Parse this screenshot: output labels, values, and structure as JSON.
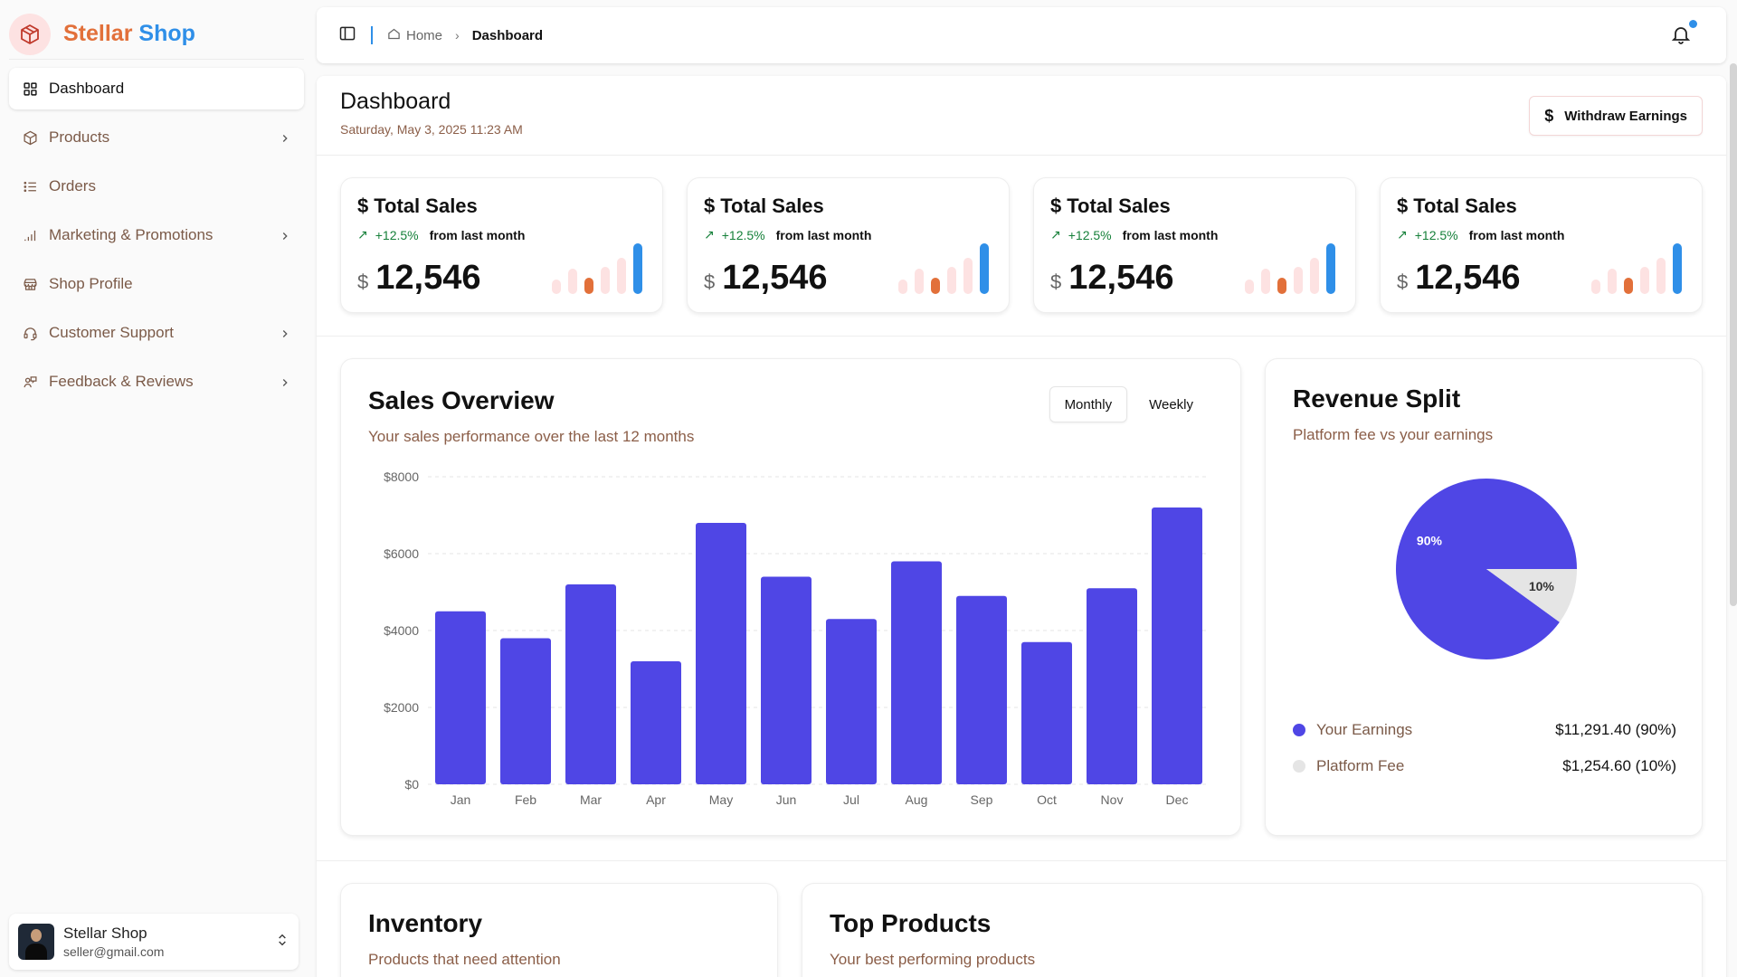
{
  "brand": {
    "name_part1": "Stellar",
    "name_part2": "Shop",
    "logo_icon": "box-icon",
    "colors": {
      "part1": "#e2703a",
      "part2": "#2f8fe8"
    }
  },
  "sidebar": {
    "items": [
      {
        "label": "Dashboard",
        "icon": "grid-icon",
        "active": true,
        "has_submenu": false
      },
      {
        "label": "Products",
        "icon": "package-icon",
        "active": false,
        "has_submenu": true
      },
      {
        "label": "Orders",
        "icon": "list-icon",
        "active": false,
        "has_submenu": false
      },
      {
        "label": "Marketing & Promotions",
        "icon": "signal-icon",
        "active": false,
        "has_submenu": true
      },
      {
        "label": "Shop Profile",
        "icon": "store-icon",
        "active": false,
        "has_submenu": false
      },
      {
        "label": "Customer Support",
        "icon": "headset-icon",
        "active": false,
        "has_submenu": true
      },
      {
        "label": "Feedback & Reviews",
        "icon": "feedback-icon",
        "active": false,
        "has_submenu": true
      }
    ],
    "user": {
      "name": "Stellar Shop",
      "email": "seller@gmail.com"
    }
  },
  "topbar": {
    "breadcrumb": [
      "Home",
      "Dashboard"
    ]
  },
  "page": {
    "title": "Dashboard",
    "date": "Saturday, May 3, 2025 11:23 AM",
    "withdraw_label": "Withdraw Earnings"
  },
  "stats": [
    {
      "title": "Total Sales",
      "delta": "+12.5%",
      "delta_text": "from last month",
      "currency": "$",
      "value": "12,546"
    },
    {
      "title": "Total Sales",
      "delta": "+12.5%",
      "delta_text": "from last month",
      "currency": "$",
      "value": "12,546"
    },
    {
      "title": "Total Sales",
      "delta": "+12.5%",
      "delta_text": "from last month",
      "currency": "$",
      "value": "12,546"
    },
    {
      "title": "Total Sales",
      "delta": "+12.5%",
      "delta_text": "from last month",
      "currency": "$",
      "value": "12,546"
    }
  ],
  "sales_overview": {
    "title": "Sales Overview",
    "subtitle": "Your sales performance over the last 12 months",
    "tabs": [
      "Monthly",
      "Weekly"
    ],
    "active_tab": "Monthly"
  },
  "revenue_split": {
    "title": "Revenue Split",
    "subtitle": "Platform fee vs your earnings",
    "legend": [
      {
        "label": "Your Earnings",
        "value": "$11,291.40 (90%)",
        "color": "#4f46e5"
      },
      {
        "label": "Platform Fee",
        "value": "$1,254.60 (10%)",
        "color": "#e5e5e5"
      }
    ]
  },
  "inventory": {
    "title": "Inventory",
    "subtitle": "Products that need attention"
  },
  "top_products": {
    "title": "Top Products",
    "subtitle": "Your best performing products"
  },
  "chart_data": [
    {
      "type": "bar",
      "title": "Sales Overview",
      "categories": [
        "Jan",
        "Feb",
        "Mar",
        "Apr",
        "May",
        "Jun",
        "Jul",
        "Aug",
        "Sep",
        "Oct",
        "Nov",
        "Dec"
      ],
      "values": [
        4500,
        3800,
        5200,
        3200,
        6800,
        5400,
        4300,
        5800,
        4900,
        3700,
        5100,
        7200
      ],
      "ylim": [
        0,
        8000
      ],
      "yticks": [
        "$0",
        "$2000",
        "$4000",
        "$6000",
        "$8000"
      ],
      "color": "#4f46e5"
    },
    {
      "type": "pie",
      "title": "Revenue Split",
      "labels": [
        "Your Earnings",
        "Platform Fee"
      ],
      "values": [
        90,
        10
      ],
      "slice_labels": [
        "90%",
        "10%"
      ],
      "colors": [
        "#4f46e5",
        "#e5e5e5"
      ]
    }
  ]
}
